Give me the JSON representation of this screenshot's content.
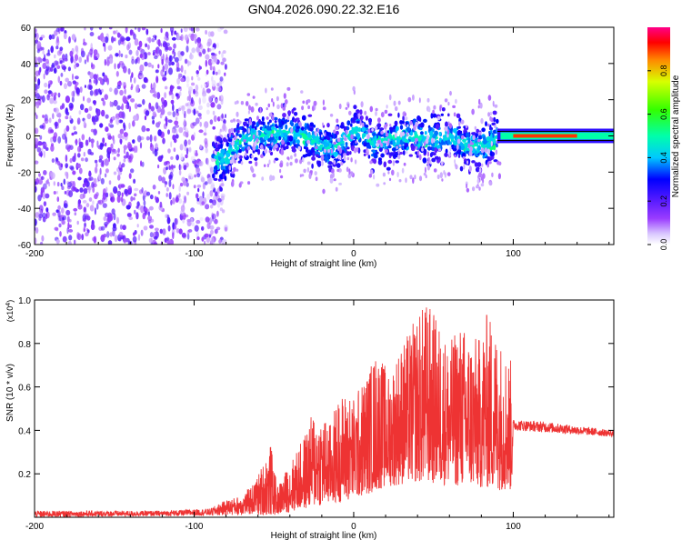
{
  "title": "GN04.2026.090.22.32.E16",
  "chart_data": [
    {
      "type": "heatmap",
      "xlabel": "Height of straight line (km)",
      "ylabel": "Frequency (Hz)",
      "xlim": [
        -200,
        163
      ],
      "ylim": [
        -60,
        60
      ],
      "xticks": [
        -200,
        -100,
        0,
        100
      ],
      "yticks": [
        -60,
        -40,
        -20,
        0,
        20,
        40,
        60
      ],
      "band_center": [
        [
          -88,
          -14
        ],
        [
          -80,
          -12
        ],
        [
          -70,
          -2
        ],
        [
          -60,
          0
        ],
        [
          -40,
          2
        ],
        [
          -25,
          -2
        ],
        [
          -15,
          -8
        ],
        [
          -5,
          -2
        ],
        [
          0,
          3
        ],
        [
          5,
          2
        ],
        [
          12,
          -4
        ],
        [
          20,
          -2
        ],
        [
          35,
          0
        ],
        [
          50,
          -2
        ],
        [
          60,
          0
        ],
        [
          70,
          -5
        ],
        [
          80,
          -6
        ],
        [
          88,
          -2
        ],
        [
          90,
          0
        ],
        [
          163,
          0
        ]
      ],
      "colorbar": {
        "label": "Normalized spectral amplitude",
        "range": [
          0,
          1
        ],
        "ticks": [
          "0.0",
          "0.2",
          "0.4",
          "0.6",
          "0.8"
        ]
      }
    },
    {
      "type": "line",
      "xlabel": "Height of straight line (km)",
      "ylabel": "SNR (10 * v/v)",
      "yscale_label": "(x10",
      "yscale_exp": "4",
      "color": "#ee3333",
      "xlim": [
        -200,
        163
      ],
      "ylim": [
        0,
        1.0
      ],
      "xticks": [
        -200,
        -100,
        0,
        100
      ],
      "yticks": [
        "0.2",
        "0.4",
        "0.6",
        "0.8",
        "1.0"
      ],
      "envelope": [
        [
          -200,
          0.03
        ],
        [
          -120,
          0.03
        ],
        [
          -90,
          0.04
        ],
        [
          -80,
          0.08
        ],
        [
          -70,
          0.1
        ],
        [
          -62,
          0.16
        ],
        [
          -52,
          0.34
        ],
        [
          -48,
          0.14
        ],
        [
          -40,
          0.25
        ],
        [
          -32,
          0.36
        ],
        [
          -25,
          0.5
        ],
        [
          -20,
          0.48
        ],
        [
          -15,
          0.43
        ],
        [
          -10,
          0.55
        ],
        [
          -5,
          0.58
        ],
        [
          0,
          0.56
        ],
        [
          5,
          0.62
        ],
        [
          10,
          0.7
        ],
        [
          15,
          0.78
        ],
        [
          22,
          0.66
        ],
        [
          28,
          0.78
        ],
        [
          35,
          0.86
        ],
        [
          40,
          0.94
        ],
        [
          46,
          1.0
        ],
        [
          52,
          0.92
        ],
        [
          60,
          0.8
        ],
        [
          66,
          0.9
        ],
        [
          72,
          0.86
        ],
        [
          78,
          0.82
        ],
        [
          84,
          0.96
        ],
        [
          90,
          0.85
        ],
        [
          95,
          0.78
        ],
        [
          99,
          0.72
        ],
        [
          100,
          0.45
        ],
        [
          120,
          0.44
        ],
        [
          140,
          0.42
        ],
        [
          163,
          0.4
        ]
      ],
      "floor": [
        [
          -200,
          0.0
        ],
        [
          -50,
          0.01
        ],
        [
          -30,
          0.04
        ],
        [
          0,
          0.08
        ],
        [
          20,
          0.14
        ],
        [
          40,
          0.16
        ],
        [
          70,
          0.14
        ],
        [
          99,
          0.12
        ],
        [
          100,
          0.4
        ],
        [
          163,
          0.37
        ]
      ]
    }
  ]
}
